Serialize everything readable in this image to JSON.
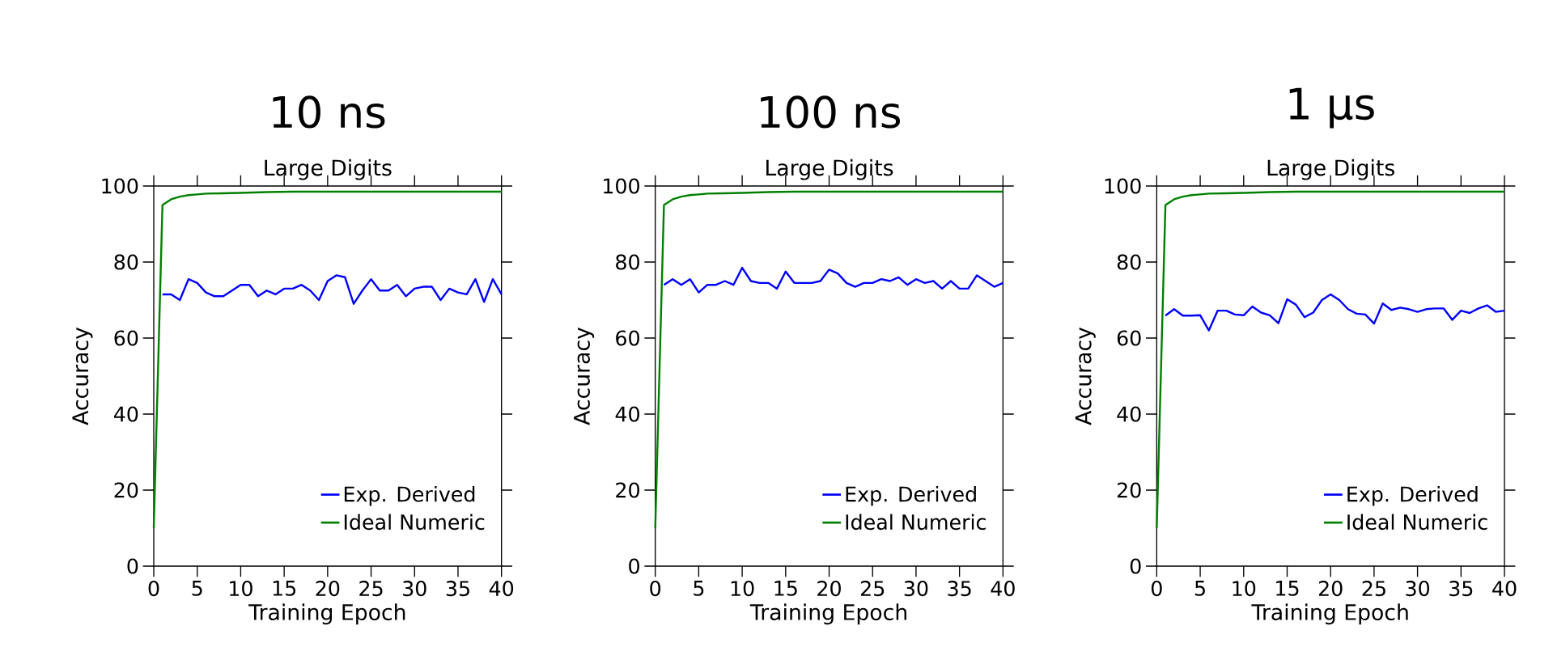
{
  "chart_data": [
    {
      "type": "line",
      "title": "10 ns",
      "subtitle": "Large Digits",
      "xlabel": "Training Epoch",
      "ylabel": "Accuracy",
      "legend": "bottom right",
      "x": [
        1,
        2,
        3,
        4,
        5,
        6,
        7,
        8,
        9,
        10,
        11,
        12,
        13,
        14,
        15,
        16,
        17,
        18,
        19,
        20,
        21,
        22,
        23,
        24,
        25,
        26,
        27,
        28,
        29,
        30,
        31,
        32,
        33,
        34,
        35,
        36,
        37,
        38,
        39,
        40
      ],
      "xlim": [
        0,
        40
      ],
      "ylim": [
        0,
        100
      ],
      "xticks": [
        0,
        5,
        10,
        15,
        20,
        25,
        30,
        35,
        40
      ],
      "yticks": [
        0,
        20,
        40,
        60,
        80,
        100
      ],
      "series": [
        {
          "name": "Exp. Derived",
          "color": "#0000ff",
          "values": [
            71.5,
            71.5,
            70,
            75.5,
            74.5,
            72,
            71,
            71,
            72.5,
            74,
            74,
            71,
            72.5,
            71.5,
            73,
            73,
            74,
            72.5,
            70,
            75,
            76.5,
            76,
            69,
            72.5,
            75.5,
            72.5,
            72.5,
            74,
            71,
            73,
            73.5,
            73.5,
            70,
            73,
            72,
            71.5,
            75.5,
            69.5,
            75.5,
            71.5
          ]
        },
        {
          "name": "Ideal Numeric",
          "color": "#008000",
          "x": [
            0,
            1,
            2,
            3,
            4,
            5,
            6,
            8,
            10,
            13,
            16,
            20,
            25,
            30,
            35,
            40
          ],
          "values": [
            10,
            95,
            96.5,
            97.2,
            97.6,
            97.8,
            98,
            98.1,
            98.2,
            98.4,
            98.5,
            98.5,
            98.5,
            98.5,
            98.5,
            98.5
          ]
        }
      ]
    },
    {
      "type": "line",
      "title": "100 ns",
      "subtitle": "Large Digits",
      "xlabel": "Training Epoch",
      "ylabel": "Accuracy",
      "legend": "bottom right",
      "x": [
        1,
        2,
        3,
        4,
        5,
        6,
        7,
        8,
        9,
        10,
        11,
        12,
        13,
        14,
        15,
        16,
        17,
        18,
        19,
        20,
        21,
        22,
        23,
        24,
        25,
        26,
        27,
        28,
        29,
        30,
        31,
        32,
        33,
        34,
        35,
        36,
        37,
        38,
        39,
        40
      ],
      "xlim": [
        0,
        40
      ],
      "ylim": [
        0,
        100
      ],
      "xticks": [
        0,
        5,
        10,
        15,
        20,
        25,
        30,
        35,
        40
      ],
      "yticks": [
        0,
        20,
        40,
        60,
        80,
        100
      ],
      "series": [
        {
          "name": "Exp. Derived",
          "color": "#0000ff",
          "values": [
            74,
            75.5,
            74,
            75.5,
            72,
            74,
            74,
            75,
            74,
            78.5,
            75,
            74.5,
            74.5,
            73,
            77.5,
            74.5,
            74.5,
            74.5,
            75,
            78,
            77,
            74.5,
            73.5,
            74.5,
            74.5,
            75.5,
            75,
            76,
            74,
            75.5,
            74.5,
            75,
            73,
            75,
            73,
            73,
            76.5,
            75,
            73.5,
            74.5
          ]
        },
        {
          "name": "Ideal Numeric",
          "color": "#008000",
          "x": [
            0,
            1,
            2,
            3,
            4,
            5,
            6,
            8,
            10,
            13,
            16,
            20,
            25,
            30,
            35,
            40
          ],
          "values": [
            10,
            95,
            96.5,
            97.2,
            97.6,
            97.8,
            98,
            98.1,
            98.2,
            98.4,
            98.5,
            98.5,
            98.5,
            98.5,
            98.5,
            98.5
          ]
        }
      ]
    },
    {
      "type": "line",
      "title": "1 µs",
      "subtitle": "Large Digits",
      "xlabel": "Training Epoch",
      "ylabel": "Accuracy",
      "legend": "bottom right",
      "x": [
        1,
        2,
        3,
        4,
        5,
        6,
        7,
        8,
        9,
        10,
        11,
        12,
        13,
        14,
        15,
        16,
        17,
        18,
        19,
        20,
        21,
        22,
        23,
        24,
        25,
        26,
        27,
        28,
        29,
        30,
        31,
        32,
        33,
        34,
        35,
        36,
        37,
        38,
        39,
        40
      ],
      "xlim": [
        0,
        40
      ],
      "ylim": [
        0,
        100
      ],
      "xticks": [
        0,
        5,
        10,
        15,
        20,
        25,
        30,
        35,
        40
      ],
      "yticks": [
        0,
        20,
        40,
        60,
        80,
        100
      ],
      "series": [
        {
          "name": "Exp. Derived",
          "color": "#0000ff",
          "values": [
            65.9,
            67.6,
            65.9,
            65.9,
            66,
            62,
            67.2,
            67.2,
            66.2,
            66,
            68.3,
            66.7,
            66,
            63.9,
            70.2,
            68.8,
            65.5,
            66.7,
            70,
            71.5,
            70,
            67.6,
            66.4,
            66.2,
            63.8,
            69.1,
            67.4,
            68,
            67.6,
            66.9,
            67.6,
            67.8,
            67.8,
            64.8,
            67.2,
            66.6,
            67.8,
            68.6,
            66.9,
            67.2
          ]
        },
        {
          "name": "Ideal Numeric",
          "color": "#008000",
          "x": [
            0,
            1,
            2,
            3,
            4,
            5,
            6,
            8,
            10,
            13,
            16,
            20,
            25,
            30,
            35,
            40
          ],
          "values": [
            10,
            95,
            96.5,
            97.2,
            97.6,
            97.8,
            98,
            98.1,
            98.2,
            98.4,
            98.5,
            98.5,
            98.5,
            98.5,
            98.5,
            98.5
          ]
        }
      ]
    }
  ]
}
